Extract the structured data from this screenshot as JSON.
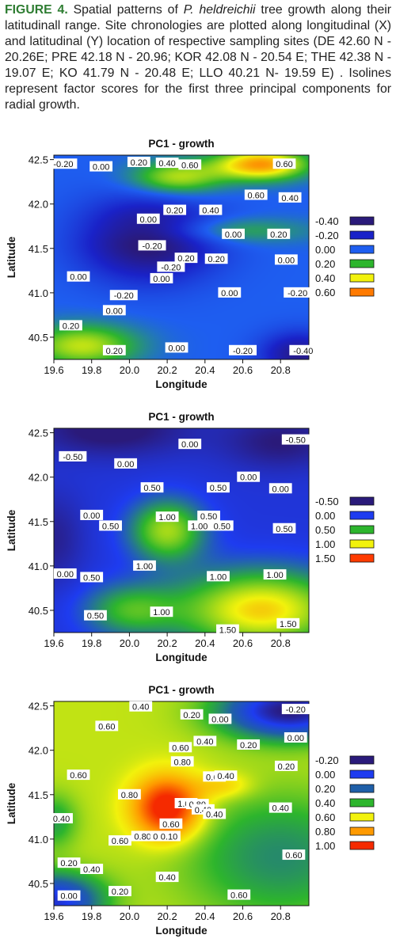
{
  "caption": {
    "label": "FIGURE 4.",
    "pre": " Spatial patterns of ",
    "species": "P. heldreichii",
    "post": " tree growth along their latitudinall range. Site chronologies are plotted along longitudinal (X) and latitudinal (Y) location of respective sampling sites (DE 42.60 N - 20.26E; PRE 42.18 N - 20.96; KOR 42.08 N - 20.54 E; THE 42.38 N - 19.07 E; KO 41.79 N - 20.48 E; LLO 40.21 N- 19.59 E) . Isolines represent factor scores for the first three principal components for radial growth."
  },
  "chart_data": [
    {
      "type": "heatmap",
      "title": "PC1 - growth",
      "xlabel": "Longitude",
      "ylabel": "Latitude",
      "xlim": [
        19.6,
        20.95
      ],
      "ylim": [
        40.25,
        42.55
      ],
      "xticks": [
        "19.6",
        "19.8",
        "20.0",
        "20.2",
        "20.4",
        "20.6",
        "20.8"
      ],
      "yticks": [
        "40.5",
        "41.0",
        "41.5",
        "42.0",
        "42.5"
      ],
      "legend": {
        "placement": "right",
        "entries": [
          {
            "label": "-0.40",
            "color": "#2a1a7a"
          },
          {
            "label": "-0.20",
            "color": "#1a22c8"
          },
          {
            "label": "0.00",
            "color": "#1e5ef0"
          },
          {
            "label": "0.20",
            "color": "#2db52d"
          },
          {
            "label": "0.40",
            "color": "#f2f20c"
          },
          {
            "label": "0.60",
            "color": "#ff7a00"
          }
        ]
      },
      "surface": {
        "base": 0.0,
        "features": [
          {
            "x": 20.7,
            "y": 42.45,
            "amp": 0.55,
            "sx": 0.25,
            "sy": 0.18
          },
          {
            "x": 20.25,
            "y": 42.3,
            "amp": 0.35,
            "sx": 0.25,
            "sy": 0.2
          },
          {
            "x": 20.1,
            "y": 41.6,
            "amp": -0.45,
            "sx": 0.35,
            "sy": 0.45
          },
          {
            "x": 20.9,
            "y": 40.3,
            "amp": -0.35,
            "sx": 0.2,
            "sy": 0.25
          },
          {
            "x": 19.75,
            "y": 40.4,
            "amp": 0.35,
            "sx": 0.3,
            "sy": 0.25
          },
          {
            "x": 20.5,
            "y": 41.7,
            "amp": 0.2,
            "sx": 0.45,
            "sy": 0.15
          }
        ]
      },
      "contour_labels": [
        {
          "x": 19.65,
          "y": 42.45,
          "label": "-0.20"
        },
        {
          "x": 19.85,
          "y": 42.42,
          "label": "0.00"
        },
        {
          "x": 20.05,
          "y": 42.47,
          "label": "0.20"
        },
        {
          "x": 20.2,
          "y": 42.46,
          "label": "0.40"
        },
        {
          "x": 20.32,
          "y": 42.44,
          "label": "0.60"
        },
        {
          "x": 20.82,
          "y": 42.45,
          "label": "0.60"
        },
        {
          "x": 20.67,
          "y": 42.1,
          "label": "0.60"
        },
        {
          "x": 20.85,
          "y": 42.07,
          "label": "0.40"
        },
        {
          "x": 20.24,
          "y": 41.93,
          "label": "0.20"
        },
        {
          "x": 20.43,
          "y": 41.93,
          "label": "0.40"
        },
        {
          "x": 20.1,
          "y": 41.83,
          "label": "0.00"
        },
        {
          "x": 20.55,
          "y": 41.66,
          "label": "0.00"
        },
        {
          "x": 20.79,
          "y": 41.66,
          "label": "0.20"
        },
        {
          "x": 20.12,
          "y": 41.53,
          "label": "-0.20"
        },
        {
          "x": 20.3,
          "y": 41.39,
          "label": "0.20"
        },
        {
          "x": 20.46,
          "y": 41.38,
          "label": "0.20"
        },
        {
          "x": 20.22,
          "y": 41.29,
          "label": "-0.20"
        },
        {
          "x": 20.83,
          "y": 41.37,
          "label": "0.00"
        },
        {
          "x": 19.73,
          "y": 41.18,
          "label": "0.00"
        },
        {
          "x": 20.17,
          "y": 41.16,
          "label": "0.00"
        },
        {
          "x": 19.97,
          "y": 40.97,
          "label": "-0.20"
        },
        {
          "x": 20.53,
          "y": 41.0,
          "label": "0.00"
        },
        {
          "x": 20.89,
          "y": 41.0,
          "label": "-0.20"
        },
        {
          "x": 19.92,
          "y": 40.8,
          "label": "0.00"
        },
        {
          "x": 19.69,
          "y": 40.63,
          "label": "0.20"
        },
        {
          "x": 19.92,
          "y": 40.35,
          "label": "0.20"
        },
        {
          "x": 20.25,
          "y": 40.38,
          "label": "0.00"
        },
        {
          "x": 20.6,
          "y": 40.35,
          "label": "-0.20"
        },
        {
          "x": 20.92,
          "y": 40.35,
          "label": "-0.40"
        }
      ]
    },
    {
      "type": "heatmap",
      "title": "PC1 - growth",
      "xlabel": "Longitude",
      "ylabel": "Latitude",
      "xlim": [
        19.6,
        20.95
      ],
      "ylim": [
        40.25,
        42.55
      ],
      "xticks": [
        "19.6",
        "19.8",
        "20.0",
        "20.2",
        "20.4",
        "20.6",
        "20.8"
      ],
      "yticks": [
        "40.5",
        "41.0",
        "41.5",
        "42.0",
        "42.5"
      ],
      "legend": {
        "placement": "right",
        "entries": [
          {
            "label": "-0.50",
            "color": "#2a1a7a"
          },
          {
            "label": "0.00",
            "color": "#1e3cf0"
          },
          {
            "label": "0.50",
            "color": "#2db52d"
          },
          {
            "label": "1.00",
            "color": "#f2f20c"
          },
          {
            "label": "1.50",
            "color": "#ff3b00"
          }
        ]
      },
      "surface": {
        "base": -0.1,
        "features": [
          {
            "x": 20.2,
            "y": 41.4,
            "amp": 0.9,
            "sx": 0.2,
            "sy": 0.35
          },
          {
            "x": 20.7,
            "y": 40.5,
            "amp": 1.2,
            "sx": 0.45,
            "sy": 0.45
          },
          {
            "x": 20.0,
            "y": 40.5,
            "amp": 0.6,
            "sx": 0.25,
            "sy": 0.3
          },
          {
            "x": 19.9,
            "y": 42.55,
            "amp": -0.5,
            "sx": 0.4,
            "sy": 0.3
          },
          {
            "x": 20.8,
            "y": 42.4,
            "amp": -0.4,
            "sx": 0.3,
            "sy": 0.3
          },
          {
            "x": 19.6,
            "y": 41.3,
            "amp": -0.3,
            "sx": 0.15,
            "sy": 0.5
          }
        ]
      },
      "contour_labels": [
        {
          "x": 20.32,
          "y": 42.37,
          "label": "0.00"
        },
        {
          "x": 20.88,
          "y": 42.42,
          "label": "-0.50"
        },
        {
          "x": 19.7,
          "y": 42.23,
          "label": "-0.50"
        },
        {
          "x": 19.98,
          "y": 42.15,
          "label": "0.00"
        },
        {
          "x": 20.63,
          "y": 42.0,
          "label": "0.00"
        },
        {
          "x": 20.8,
          "y": 41.87,
          "label": "0.00"
        },
        {
          "x": 20.12,
          "y": 41.88,
          "label": "0.50"
        },
        {
          "x": 20.47,
          "y": 41.88,
          "label": "0.50"
        },
        {
          "x": 19.8,
          "y": 41.57,
          "label": "0.00"
        },
        {
          "x": 20.2,
          "y": 41.55,
          "label": "1.00"
        },
        {
          "x": 20.42,
          "y": 41.56,
          "label": "0.50"
        },
        {
          "x": 20.37,
          "y": 41.45,
          "label": "1.00"
        },
        {
          "x": 20.49,
          "y": 41.45,
          "label": "0.50"
        },
        {
          "x": 19.9,
          "y": 41.45,
          "label": "0.50"
        },
        {
          "x": 20.82,
          "y": 41.42,
          "label": "0.50"
        },
        {
          "x": 20.08,
          "y": 41.0,
          "label": "1.00"
        },
        {
          "x": 19.66,
          "y": 40.91,
          "label": "0.00"
        },
        {
          "x": 19.8,
          "y": 40.87,
          "label": "0.50"
        },
        {
          "x": 20.47,
          "y": 40.88,
          "label": "1.00"
        },
        {
          "x": 20.77,
          "y": 40.9,
          "label": "1.00"
        },
        {
          "x": 19.82,
          "y": 40.44,
          "label": "0.50"
        },
        {
          "x": 20.17,
          "y": 40.48,
          "label": "1.00"
        },
        {
          "x": 20.52,
          "y": 40.28,
          "label": "1.50"
        },
        {
          "x": 20.84,
          "y": 40.35,
          "label": "1.50"
        }
      ]
    },
    {
      "type": "heatmap",
      "title": "PC1 - growth",
      "xlabel": "Longitude",
      "ylabel": "Latitude",
      "xlim": [
        19.6,
        20.95
      ],
      "ylim": [
        40.25,
        42.55
      ],
      "xticks": [
        "19.6",
        "19.8",
        "20.0",
        "20.2",
        "20.4",
        "20.6",
        "20.8"
      ],
      "yticks": [
        "40.5",
        "41.0",
        "41.5",
        "42.0",
        "42.5"
      ],
      "legend": {
        "placement": "right",
        "entries": [
          {
            "label": "-0.20",
            "color": "#2a1a7a"
          },
          {
            "label": "0.00",
            "color": "#1e3cf0"
          },
          {
            "label": "0.20",
            "color": "#1f5fa8"
          },
          {
            "label": "0.40",
            "color": "#2db52d"
          },
          {
            "label": "0.60",
            "color": "#f2f20c"
          },
          {
            "label": "0.80",
            "color": "#ff9a00"
          },
          {
            "label": "1.00",
            "color": "#f52a00"
          }
        ]
      },
      "surface": {
        "base": 0.55,
        "features": [
          {
            "x": 20.2,
            "y": 41.35,
            "amp": 0.55,
            "sx": 0.18,
            "sy": 0.35
          },
          {
            "x": 20.85,
            "y": 42.45,
            "amp": -0.75,
            "sx": 0.35,
            "sy": 0.3
          },
          {
            "x": 20.8,
            "y": 40.8,
            "amp": -0.25,
            "sx": 0.5,
            "sy": 0.7
          },
          {
            "x": 19.6,
            "y": 40.3,
            "amp": -0.6,
            "sx": 0.25,
            "sy": 0.3
          },
          {
            "x": 19.6,
            "y": 41.2,
            "amp": -0.2,
            "sx": 0.12,
            "sy": 0.3
          },
          {
            "x": 20.5,
            "y": 41.6,
            "amp": 0.15,
            "sx": 0.15,
            "sy": 0.15
          }
        ]
      },
      "contour_labels": [
        {
          "x": 20.06,
          "y": 42.49,
          "label": "0.40"
        },
        {
          "x": 20.33,
          "y": 42.4,
          "label": "0.20"
        },
        {
          "x": 20.48,
          "y": 42.35,
          "label": "0.00"
        },
        {
          "x": 20.88,
          "y": 42.46,
          "label": "-0.20"
        },
        {
          "x": 19.88,
          "y": 42.27,
          "label": "0.60"
        },
        {
          "x": 20.4,
          "y": 42.1,
          "label": "0.40"
        },
        {
          "x": 20.27,
          "y": 42.03,
          "label": "0.60"
        },
        {
          "x": 20.63,
          "y": 42.06,
          "label": "0.20"
        },
        {
          "x": 20.88,
          "y": 42.14,
          "label": "0.00"
        },
        {
          "x": 20.28,
          "y": 41.87,
          "label": "0.80"
        },
        {
          "x": 20.83,
          "y": 41.82,
          "label": "0.20"
        },
        {
          "x": 19.73,
          "y": 41.72,
          "label": "0.60"
        },
        {
          "x": 20.45,
          "y": 41.7,
          "label": "0.60"
        },
        {
          "x": 20.51,
          "y": 41.71,
          "label": "0.40"
        },
        {
          "x": 20.0,
          "y": 41.5,
          "label": "0.80"
        },
        {
          "x": 20.3,
          "y": 41.4,
          "label": "1.00"
        },
        {
          "x": 20.36,
          "y": 41.39,
          "label": "0.80"
        },
        {
          "x": 20.39,
          "y": 41.33,
          "label": "0.40"
        },
        {
          "x": 20.45,
          "y": 41.28,
          "label": "0.40"
        },
        {
          "x": 20.8,
          "y": 41.35,
          "label": "0.40"
        },
        {
          "x": 20.22,
          "y": 41.17,
          "label": "0.60"
        },
        {
          "x": 19.64,
          "y": 41.23,
          "label": "0.40"
        },
        {
          "x": 20.07,
          "y": 41.03,
          "label": "0.80"
        },
        {
          "x": 20.17,
          "y": 41.03,
          "label": "0.40"
        },
        {
          "x": 20.21,
          "y": 41.03,
          "label": "0.10"
        },
        {
          "x": 19.95,
          "y": 40.98,
          "label": "0.60"
        },
        {
          "x": 20.87,
          "y": 40.82,
          "label": "0.60"
        },
        {
          "x": 19.68,
          "y": 40.73,
          "label": "0.20"
        },
        {
          "x": 19.8,
          "y": 40.66,
          "label": "0.40"
        },
        {
          "x": 20.2,
          "y": 40.57,
          "label": "0.40"
        },
        {
          "x": 19.68,
          "y": 40.36,
          "label": "0.00"
        },
        {
          "x": 19.95,
          "y": 40.41,
          "label": "0.20"
        },
        {
          "x": 20.58,
          "y": 40.37,
          "label": "0.60"
        }
      ]
    }
  ]
}
